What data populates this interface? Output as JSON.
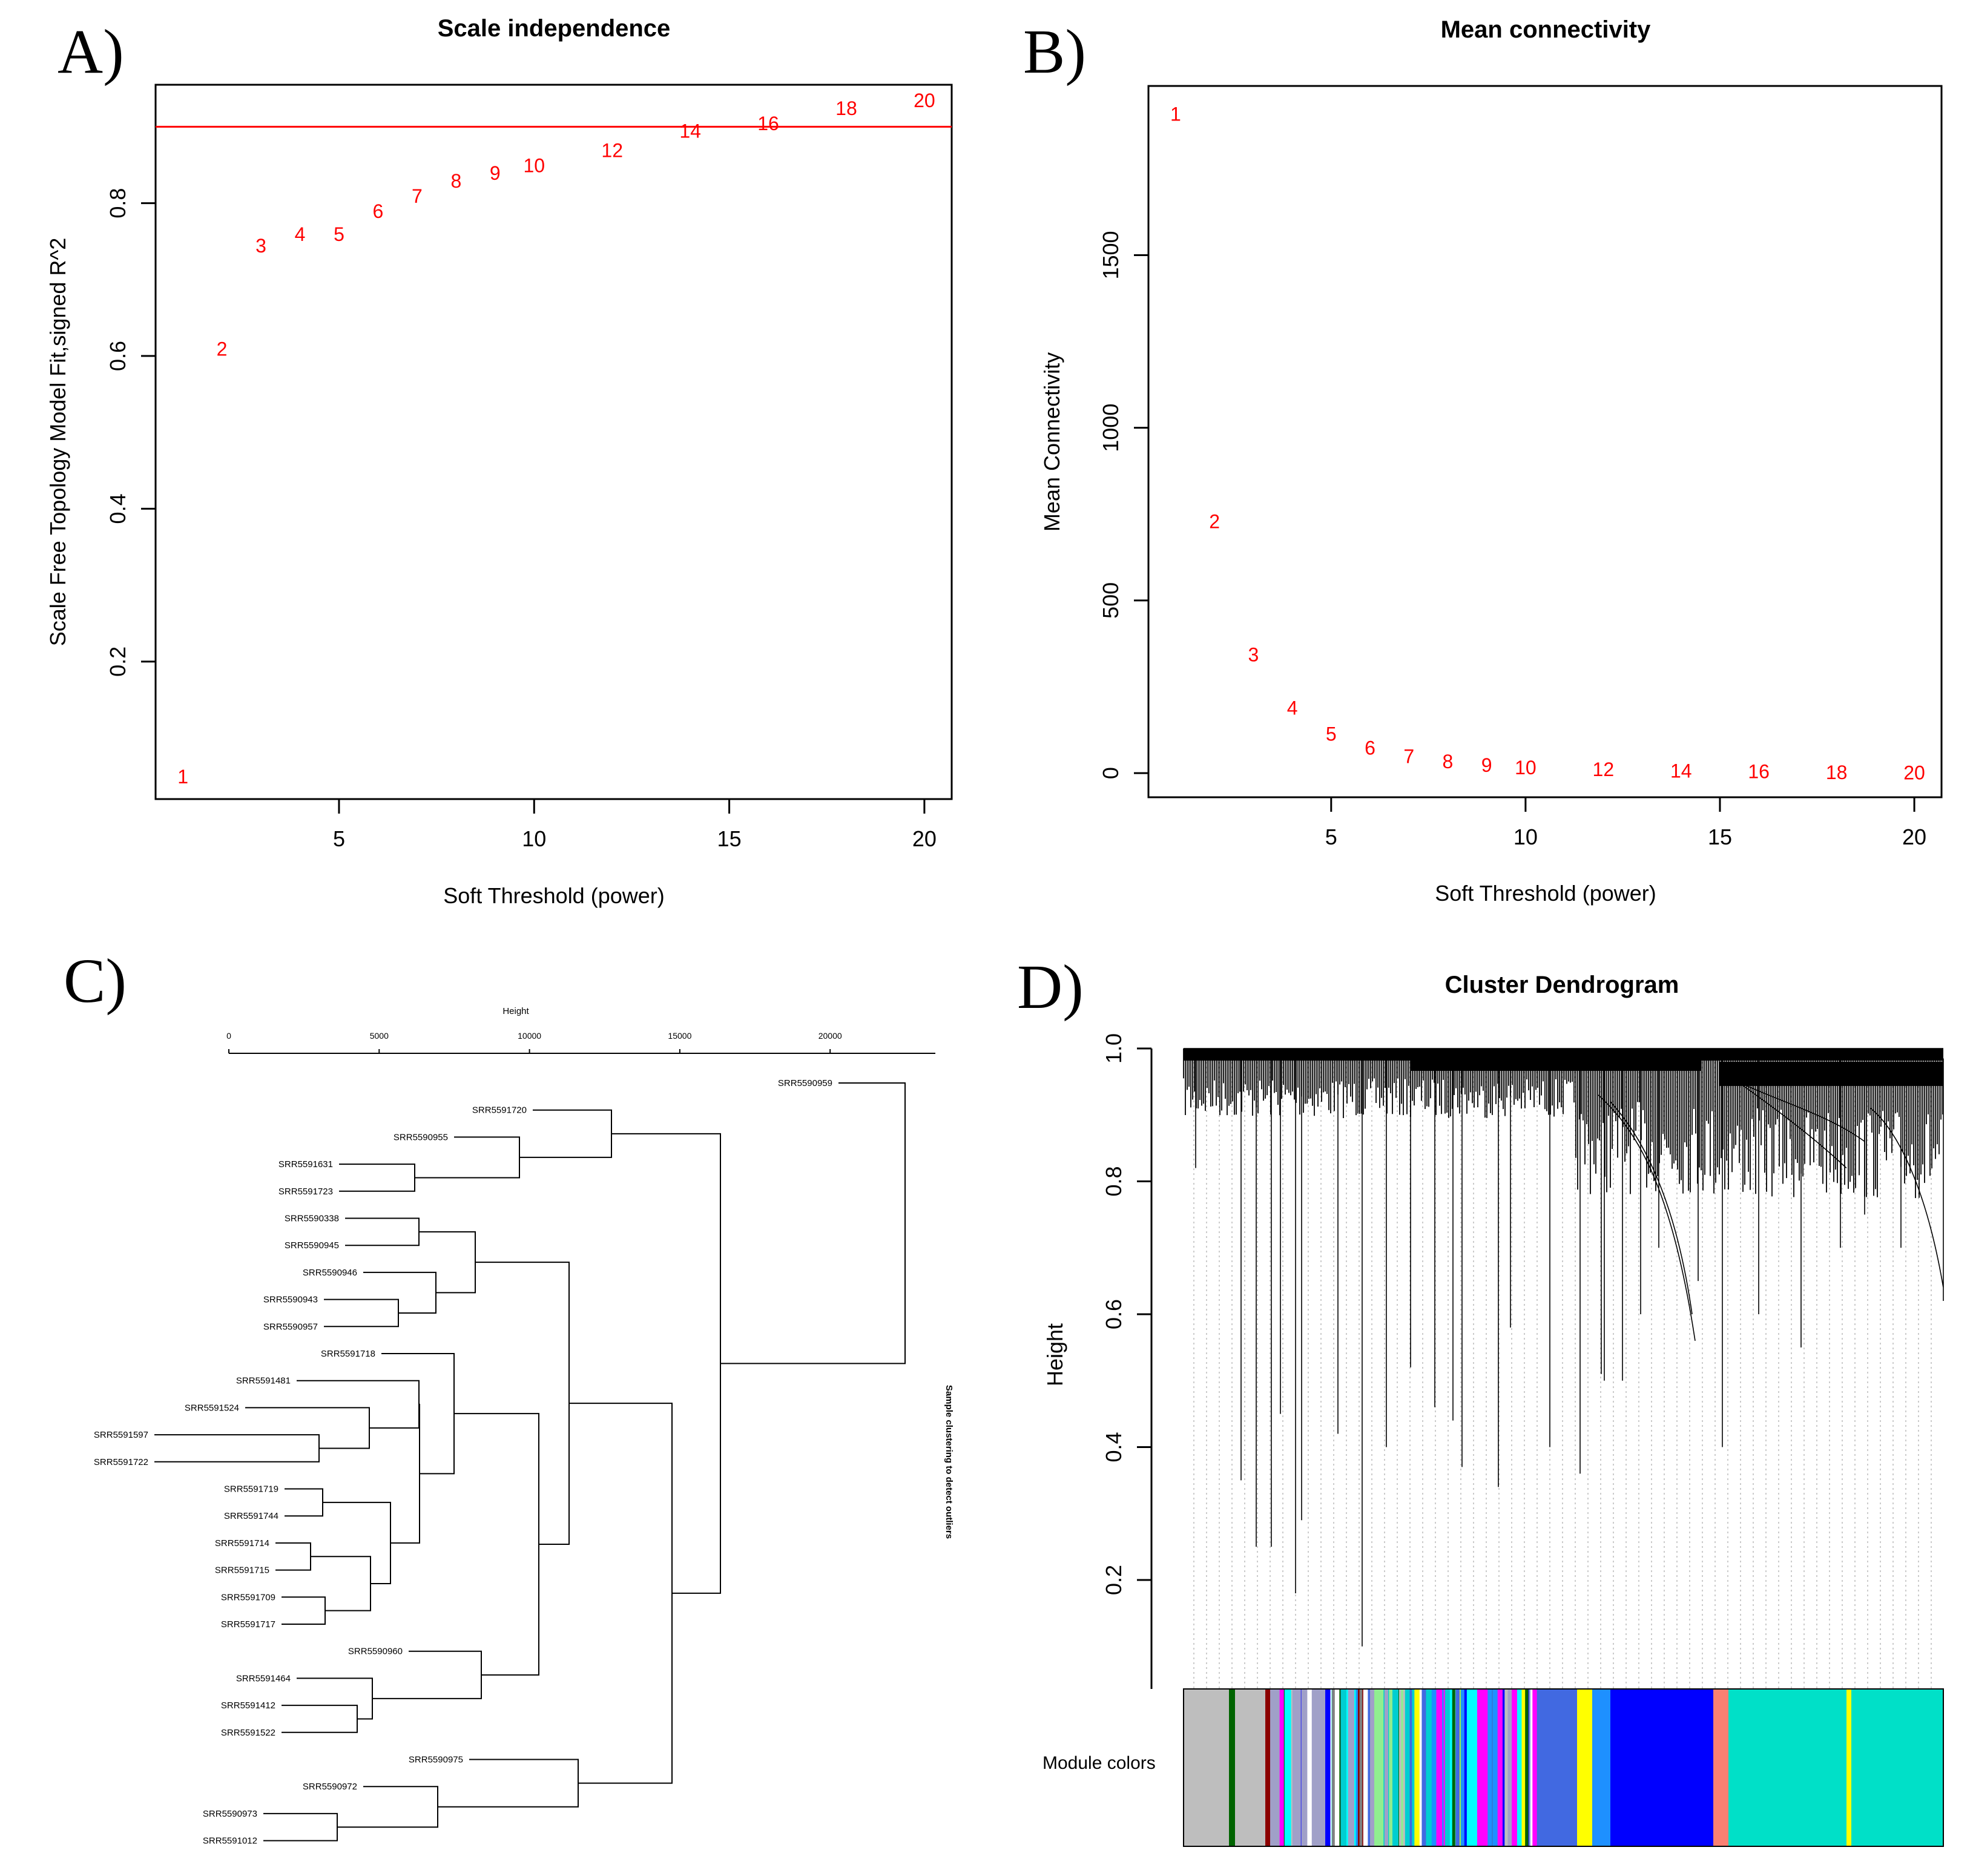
{
  "panels": {
    "a": {
      "letter": "A)"
    },
    "b": {
      "letter": "B)"
    },
    "c": {
      "letter": "C)"
    },
    "d": {
      "letter": "D)"
    }
  },
  "colors": {
    "red": "#ff0000",
    "axis": "#000000",
    "dendro": "#000000"
  },
  "chart_data": [
    {
      "id": "A",
      "type": "scatter",
      "title": "Scale independence",
      "xlabel": "Soft Threshold (power)",
      "ylabel": "Scale Free Topology Model Fit,signed R^2",
      "xlim": [
        0.3,
        20.7
      ],
      "ylim": [
        0.02,
        0.955
      ],
      "xticks": [
        5,
        10,
        15,
        20
      ],
      "yticks": [
        0.2,
        0.4,
        0.6,
        0.8
      ],
      "hline": 0.9,
      "point_labels": [
        "1",
        "2",
        "3",
        "4",
        "5",
        "6",
        "7",
        "8",
        "9",
        "10",
        "12",
        "14",
        "16",
        "18",
        "20"
      ],
      "x": [
        1,
        2,
        3,
        4,
        5,
        6,
        7,
        8,
        9,
        10,
        12,
        14,
        16,
        18,
        20
      ],
      "y": [
        0.05,
        0.61,
        0.745,
        0.76,
        0.76,
        0.79,
        0.81,
        0.83,
        0.84,
        0.85,
        0.87,
        0.895,
        0.905,
        0.925,
        0.935
      ]
    },
    {
      "id": "B",
      "type": "scatter",
      "title": "Mean connectivity",
      "xlabel": "Soft Threshold (power)",
      "ylabel": "Mean Connectivity",
      "xlim": [
        0.3,
        20.7
      ],
      "ylim": [
        -70,
        1990
      ],
      "xticks": [
        5,
        10,
        15,
        20
      ],
      "yticks": [
        0,
        500,
        1000,
        1500
      ],
      "point_labels": [
        "1",
        "2",
        "3",
        "4",
        "5",
        "6",
        "7",
        "8",
        "9",
        "10",
        "12",
        "14",
        "16",
        "18",
        "20"
      ],
      "x": [
        1,
        2,
        3,
        4,
        5,
        6,
        7,
        8,
        9,
        10,
        12,
        14,
        16,
        18,
        20
      ],
      "y": [
        1910,
        730,
        345,
        190,
        115,
        75,
        50,
        35,
        25,
        18,
        12,
        8,
        6,
        4,
        3
      ]
    },
    {
      "id": "C",
      "type": "dendrogram",
      "title": "Sample clustering to detect outliers",
      "axis_label": "Height",
      "axis_range": [
        0,
        23500
      ],
      "ticks": [
        0,
        5000,
        10000,
        15000,
        20000
      ],
      "leaves": [
        "SRR5590959",
        "SRR5591720",
        "SRR5590955",
        "SRR5591631",
        "SRR5591723",
        "SRR5590338",
        "SRR5590945",
        "SRR5590946",
        "SRR5590943",
        "SRR5590957",
        "SRR5591718",
        "SRR5591481",
        "SRR5591524",
        "SRR5591597",
        "SRR5591722",
        "SRR5591719",
        "SRR5591744",
        "SRR5591714",
        "SRR5591715",
        "SRR5591709",
        "SRR5591717",
        "SRR5590960",
        "SRR5591464",
        "SRR5591412",
        "SRR5591522",
        "SRR5590975",
        "SRR5590972",
        "SRR5590973",
        "SRR5591012"
      ]
    },
    {
      "id": "D",
      "type": "dendrogram",
      "title": "Cluster Dendrogram",
      "ylabel": "Height",
      "ylim": [
        0.0,
        1.0
      ],
      "yticks": [
        0.2,
        0.4,
        0.6,
        0.8,
        1.0
      ],
      "color_bar_label": "Module colors",
      "module_colors": [
        "#bebebe",
        "#808080",
        "#006400",
        "#8b0000",
        "#a0a0c8",
        "#4169e1",
        "#90ee90",
        "#00ced1",
        "#ffffff",
        "#00ffff",
        "#ff00ff",
        "#0000ff",
        "#ffff00",
        "#1e90ff",
        "#fa8072",
        "#00e0c8",
        "#40e0d0",
        "#9acd32"
      ]
    }
  ]
}
